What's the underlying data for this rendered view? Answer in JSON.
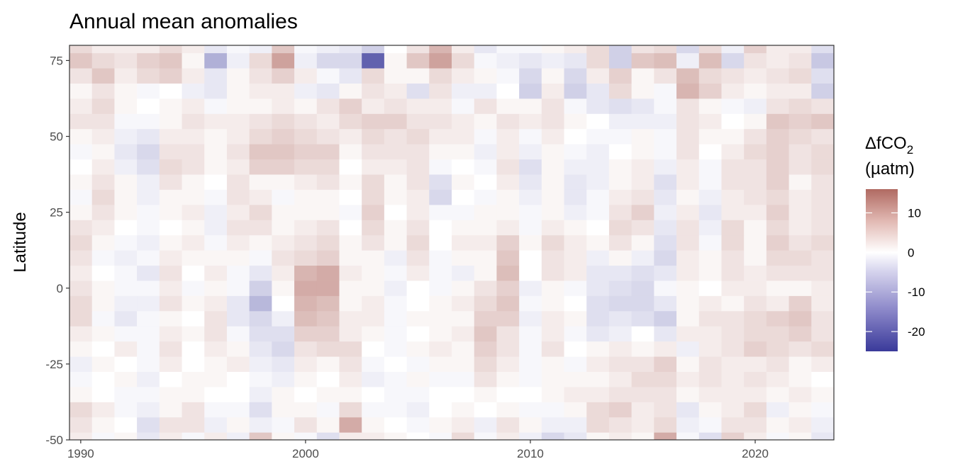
{
  "chart_data": {
    "type": "heatmap",
    "title": "Annual mean anomalies",
    "xlabel": "",
    "ylabel": "Latitude",
    "xlim": [
      1989.5,
      2023.5
    ],
    "ylim": [
      -50,
      80
    ],
    "x_ticks": [
      1990,
      2000,
      2010,
      2020
    ],
    "y_ticks": [
      -50,
      -25,
      0,
      25,
      50,
      75
    ],
    "grid": false,
    "legend": {
      "title_main": "ΔfCO",
      "title_sub": "2",
      "title_unit": "(µatm)",
      "placement": "right",
      "min": -25,
      "max": 16,
      "ticks": [
        -20,
        -10,
        0,
        10
      ],
      "colors": {
        "low": "#3a3a9a",
        "mid": "#ffffff",
        "high": "#b06a62"
      }
    },
    "years": [
      1990,
      1991,
      1992,
      1993,
      1994,
      1995,
      1996,
      1997,
      1998,
      1999,
      2000,
      2001,
      2002,
      2003,
      2004,
      2005,
      2006,
      2007,
      2008,
      2009,
      2010,
      2011,
      2012,
      2013,
      2014,
      2015,
      2016,
      2017,
      2018,
      2019,
      2020,
      2021,
      2022,
      2023
    ],
    "latitudes": [
      -50,
      -45,
      -40,
      -35,
      -30,
      -25,
      -20,
      -15,
      -10,
      -5,
      0,
      5,
      10,
      15,
      20,
      25,
      30,
      35,
      40,
      45,
      50,
      55,
      60,
      65,
      70,
      75,
      80
    ],
    "values": [
      [
        2,
        -1,
        1,
        -3,
        2,
        -1,
        2,
        -2,
        6,
        1,
        -1,
        -4,
        2,
        2,
        1,
        0,
        -1,
        4,
        -1,
        2,
        -2,
        -5,
        -3,
        1,
        2,
        1,
        9,
        -1,
        -4,
        5,
        2,
        -1,
        1,
        -3
      ],
      [
        3,
        1,
        0,
        -4,
        3,
        3,
        -2,
        1,
        -2,
        -1,
        3,
        1,
        9,
        1,
        0,
        -1,
        1,
        2,
        -2,
        3,
        1,
        -2,
        -2,
        4,
        3,
        2,
        4,
        -2,
        -1,
        3,
        3,
        1,
        2,
        -2
      ],
      [
        4,
        2,
        -1,
        -2,
        1,
        3,
        -1,
        -1,
        -4,
        1,
        1,
        -1,
        4,
        -1,
        -1,
        -2,
        0,
        1,
        0,
        1,
        -1,
        -1,
        1,
        4,
        5,
        2,
        3,
        -3,
        1,
        2,
        4,
        -2,
        1,
        -1
      ],
      [
        1,
        0,
        -1,
        -1,
        1,
        1,
        0,
        0,
        -2,
        1,
        0,
        1,
        1,
        0,
        -1,
        -1,
        0,
        0,
        1,
        0,
        0,
        1,
        2,
        2,
        3,
        3,
        3,
        1,
        2,
        2,
        2,
        1,
        2,
        1
      ],
      [
        -1,
        0,
        1,
        -2,
        0,
        1,
        1,
        0,
        -1,
        -2,
        1,
        0,
        2,
        -2,
        -1,
        1,
        -1,
        -1,
        3,
        1,
        -1,
        1,
        1,
        1,
        2,
        4,
        4,
        2,
        3,
        2,
        3,
        2,
        1,
        0
      ],
      [
        -2,
        1,
        0,
        -1,
        2,
        0,
        1,
        2,
        -2,
        -3,
        2,
        1,
        3,
        -1,
        0,
        -1,
        1,
        1,
        4,
        2,
        -1,
        1,
        -1,
        2,
        3,
        3,
        5,
        1,
        3,
        2,
        2,
        3,
        1,
        2
      ],
      [
        1,
        0,
        2,
        -1,
        3,
        0,
        2,
        1,
        -3,
        -5,
        3,
        4,
        4,
        0,
        -1,
        1,
        2,
        1,
        5,
        3,
        -1,
        3,
        0,
        1,
        2,
        1,
        2,
        -2,
        2,
        3,
        5,
        4,
        3,
        4
      ],
      [
        2,
        1,
        -1,
        -1,
        2,
        1,
        3,
        -1,
        -4,
        -4,
        5,
        5,
        2,
        1,
        -1,
        0,
        1,
        2,
        6,
        3,
        -1,
        2,
        -1,
        -3,
        -2,
        0,
        -3,
        2,
        2,
        3,
        4,
        4,
        5,
        3
      ],
      [
        4,
        -1,
        -3,
        -1,
        1,
        0,
        3,
        -3,
        -5,
        -2,
        7,
        6,
        2,
        2,
        -1,
        1,
        1,
        1,
        5,
        5,
        -2,
        2,
        1,
        -4,
        -3,
        -4,
        -6,
        1,
        3,
        3,
        4,
        5,
        6,
        3
      ],
      [
        4,
        1,
        -2,
        -2,
        3,
        1,
        2,
        -3,
        -9,
        0,
        8,
        7,
        1,
        2,
        -1,
        0,
        1,
        2,
        4,
        6,
        -1,
        1,
        0,
        -4,
        -5,
        -5,
        -3,
        1,
        2,
        1,
        3,
        2,
        5,
        2
      ],
      [
        3,
        1,
        -1,
        -1,
        2,
        -1,
        1,
        -1,
        -6,
        1,
        9,
        9,
        1,
        1,
        -2,
        0,
        -1,
        1,
        3,
        5,
        -2,
        1,
        -1,
        -3,
        -4,
        -5,
        -1,
        1,
        0,
        2,
        2,
        1,
        1,
        2
      ],
      [
        2,
        0,
        -1,
        -3,
        3,
        0,
        2,
        -1,
        -3,
        2,
        8,
        9,
        2,
        1,
        -1,
        2,
        -1,
        -2,
        1,
        7,
        0,
        3,
        2,
        -3,
        -3,
        -4,
        -3,
        2,
        1,
        3,
        2,
        3,
        3,
        3
      ],
      [
        3,
        -1,
        -2,
        -1,
        2,
        1,
        1,
        1,
        -1,
        3,
        4,
        5,
        1,
        1,
        -2,
        3,
        -1,
        1,
        1,
        6,
        0,
        3,
        2,
        -2,
        1,
        -2,
        -5,
        2,
        1,
        3,
        1,
        4,
        4,
        3
      ],
      [
        4,
        1,
        -1,
        -2,
        1,
        2,
        -1,
        2,
        1,
        2,
        3,
        4,
        1,
        3,
        1,
        4,
        0,
        2,
        2,
        5,
        1,
        4,
        2,
        1,
        3,
        1,
        -4,
        3,
        -1,
        4,
        1,
        5,
        3,
        4
      ],
      [
        3,
        2,
        0,
        -1,
        0,
        1,
        -2,
        3,
        3,
        1,
        2,
        3,
        0,
        4,
        1,
        3,
        0,
        1,
        1,
        2,
        -1,
        2,
        1,
        0,
        4,
        3,
        -3,
        3,
        -2,
        4,
        1,
        4,
        2,
        3
      ],
      [
        1,
        3,
        1,
        -1,
        1,
        2,
        -2,
        2,
        4,
        1,
        1,
        1,
        -1,
        5,
        0,
        2,
        -1,
        -1,
        1,
        1,
        -1,
        1,
        -2,
        -1,
        3,
        5,
        -2,
        2,
        -3,
        2,
        2,
        5,
        2,
        3
      ],
      [
        -1,
        4,
        1,
        -2,
        1,
        1,
        -1,
        3,
        2,
        -1,
        1,
        1,
        0,
        4,
        1,
        2,
        -5,
        0,
        -1,
        1,
        -2,
        1,
        -3,
        -1,
        2,
        3,
        -3,
        1,
        -2,
        2,
        3,
        4,
        2,
        3
      ],
      [
        1,
        3,
        1,
        -2,
        3,
        1,
        0,
        3,
        1,
        1,
        2,
        3,
        1,
        4,
        1,
        3,
        -4,
        1,
        0,
        2,
        -3,
        1,
        -3,
        -2,
        1,
        2,
        -4,
        2,
        -1,
        3,
        3,
        5,
        1,
        3
      ],
      [
        0,
        2,
        -2,
        -4,
        4,
        3,
        1,
        2,
        5,
        5,
        4,
        4,
        0,
        2,
        2,
        3,
        -1,
        0,
        -1,
        3,
        -4,
        1,
        -2,
        -2,
        1,
        2,
        -2,
        2,
        -1,
        3,
        3,
        5,
        3,
        4
      ],
      [
        -1,
        1,
        -3,
        -5,
        3,
        3,
        1,
        3,
        6,
        6,
        5,
        5,
        1,
        3,
        3,
        3,
        1,
        1,
        -2,
        2,
        -2,
        1,
        -1,
        -2,
        0,
        1,
        -1,
        3,
        0,
        2,
        4,
        5,
        3,
        4
      ],
      [
        1,
        2,
        -2,
        -3,
        2,
        2,
        1,
        2,
        4,
        5,
        4,
        3,
        2,
        4,
        3,
        4,
        2,
        2,
        -1,
        2,
        -1,
        2,
        0,
        -1,
        -1,
        1,
        -1,
        3,
        1,
        1,
        3,
        5,
        4,
        3
      ],
      [
        3,
        3,
        -1,
        -1,
        1,
        3,
        2,
        2,
        3,
        4,
        3,
        2,
        4,
        5,
        5,
        3,
        3,
        2,
        1,
        3,
        2,
        3,
        1,
        0,
        -2,
        -2,
        -2,
        3,
        2,
        0,
        1,
        6,
        5,
        6
      ],
      [
        2,
        4,
        1,
        0,
        1,
        2,
        -1,
        1,
        1,
        2,
        1,
        3,
        5,
        2,
        3,
        2,
        2,
        -1,
        3,
        1,
        1,
        3,
        -1,
        -3,
        -4,
        -3,
        -1,
        3,
        1,
        -1,
        -2,
        3,
        4,
        3
      ],
      [
        1,
        3,
        1,
        -1,
        0,
        -2,
        -3,
        1,
        2,
        2,
        -2,
        -3,
        1,
        3,
        2,
        -4,
        3,
        -2,
        -2,
        0,
        -6,
        2,
        -6,
        -3,
        4,
        1,
        -1,
        8,
        5,
        2,
        1,
        2,
        2,
        -6
      ],
      [
        3,
        6,
        2,
        4,
        5,
        2,
        -3,
        1,
        3,
        5,
        2,
        -1,
        -3,
        4,
        1,
        1,
        4,
        2,
        1,
        -1,
        -5,
        1,
        -5,
        2,
        5,
        1,
        3,
        7,
        4,
        3,
        2,
        3,
        4,
        -4
      ],
      [
        6,
        4,
        3,
        5,
        6,
        1,
        -10,
        -2,
        4,
        10,
        -2,
        -5,
        -5,
        -20,
        1,
        6,
        10,
        4,
        -1,
        -2,
        -3,
        -2,
        -3,
        4,
        -6,
        6,
        7,
        -2,
        7,
        -5,
        3,
        2,
        3,
        -7
      ],
      [
        4,
        2,
        2,
        2,
        4,
        2,
        -3,
        -1,
        -2,
        6,
        -1,
        -2,
        -3,
        -6,
        0,
        3,
        8,
        2,
        -3,
        -1,
        -1,
        1,
        2,
        4,
        -6,
        3,
        4,
        -5,
        4,
        -2,
        5,
        2,
        2,
        -4
      ]
    ]
  }
}
